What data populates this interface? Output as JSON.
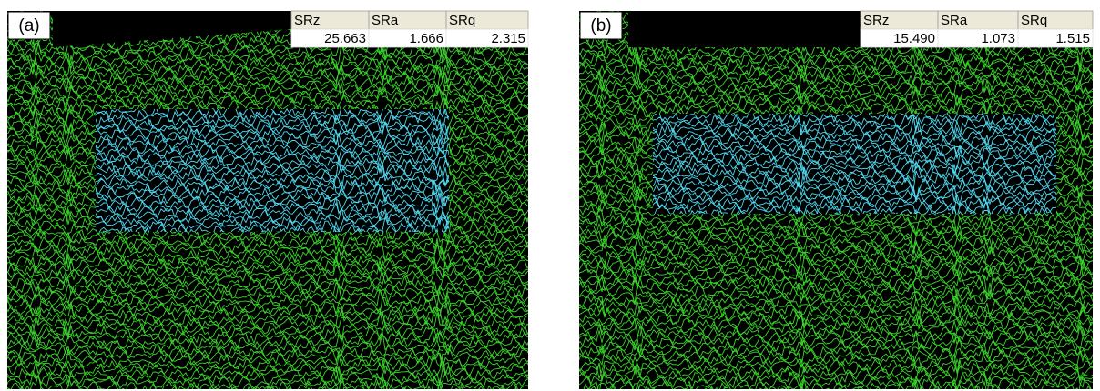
{
  "panels": [
    {
      "label": "(a)",
      "table": {
        "headers": [
          "SRz",
          "SRa",
          "SRq"
        ],
        "values": [
          "25.663",
          "1.666",
          "2.315"
        ]
      }
    },
    {
      "label": "(b)",
      "table": {
        "headers": [
          "SRz",
          "SRa",
          "SRq"
        ],
        "values": [
          "15.490",
          "1.073",
          "1.515"
        ]
      }
    }
  ]
}
